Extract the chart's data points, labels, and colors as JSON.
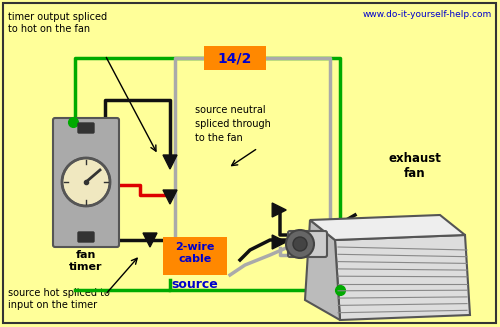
{
  "bg_color": "#FFFF99",
  "border_color": "#333333",
  "title_url": "www.do-it-yourself-help.com",
  "title_color": "#0000CC",
  "label_14_2": "14/2",
  "label_14_2_color": "#0000CC",
  "label_14_2_bg": "#FF8800",
  "label_2wire_line1": "2-wire",
  "label_2wire_line2": "cable",
  "label_2wire_color": "#0000CC",
  "label_2wire_bg": "#FF8800",
  "label_source": "source",
  "label_source_color": "#0000CC",
  "label_fan_timer": "fan\ntimer",
  "label_exhaust_fan": "exhaust\nfan",
  "text_top_left": "timer output spliced\nto hot on the fan",
  "text_neutral": "source neutral\nspliced through\nto the fan",
  "text_bottom_left": "source hot spliced to\ninput on the timer",
  "wire_green": "#00AA00",
  "wire_black": "#111111",
  "wire_gray": "#AAAAAA",
  "wire_red": "#DD0000",
  "connector_color": "#111111",
  "timer_box_fill": "#AAAAAA",
  "timer_box_edge": "#555555",
  "dial_fill": "#F0E8C0",
  "dial_edge": "#333333"
}
